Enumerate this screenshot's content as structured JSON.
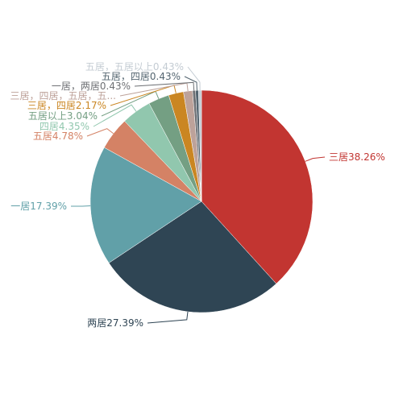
{
  "chart_data": {
    "type": "pie",
    "categories": [
      "三居",
      "两居",
      "一居",
      "五居",
      "四居",
      "五居以上",
      "三居，四居",
      "三居，四居，五居，五...",
      "一居，两居",
      "五居，四居",
      "五居，五居以上"
    ],
    "values": [
      38.26,
      27.39,
      17.39,
      4.78,
      4.35,
      3.04,
      2.17,
      1.31,
      0.43,
      0.43,
      0.43
    ],
    "value_labels": [
      "38.26%",
      "27.39%",
      "17.39%",
      "4.78%",
      "4.35%",
      "3.04%",
      "2.17%",
      null,
      "0.43%",
      "0.43%",
      "0.43%"
    ],
    "colors": [
      "#c23531",
      "#2f4554",
      "#61a0a8",
      "#d48265",
      "#91c7ae",
      "#749f83",
      "#ca8622",
      "#bda29a",
      "#6e7074",
      "#546570",
      "#c4ccd3"
    ]
  }
}
